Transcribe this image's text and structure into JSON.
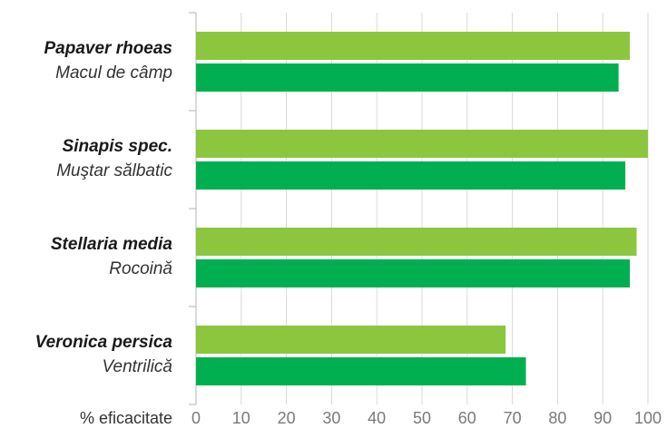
{
  "chart_data": {
    "type": "bar",
    "orientation": "horizontal",
    "categories": [
      {
        "scientific": "Papaver rhoeas",
        "common": "Macul de câmp"
      },
      {
        "scientific": "Sinapis spec.",
        "common": "Muştar sălbatic"
      },
      {
        "scientific": "Stellaria media",
        "common": "Rocoină"
      },
      {
        "scientific": "Veronica persica",
        "common": "Ventrilică"
      }
    ],
    "series": [
      {
        "color": "#8cc63f",
        "values": [
          96,
          100,
          97.5,
          68.5
        ]
      },
      {
        "color": "#00b050",
        "values": [
          93.5,
          95,
          96,
          73
        ]
      }
    ],
    "xlabel": "% eficacitate",
    "xlim": [
      0,
      100
    ],
    "xticks": [
      0,
      10,
      20,
      30,
      40,
      50,
      60,
      70,
      80,
      90,
      100
    ],
    "grid": "vertical"
  }
}
